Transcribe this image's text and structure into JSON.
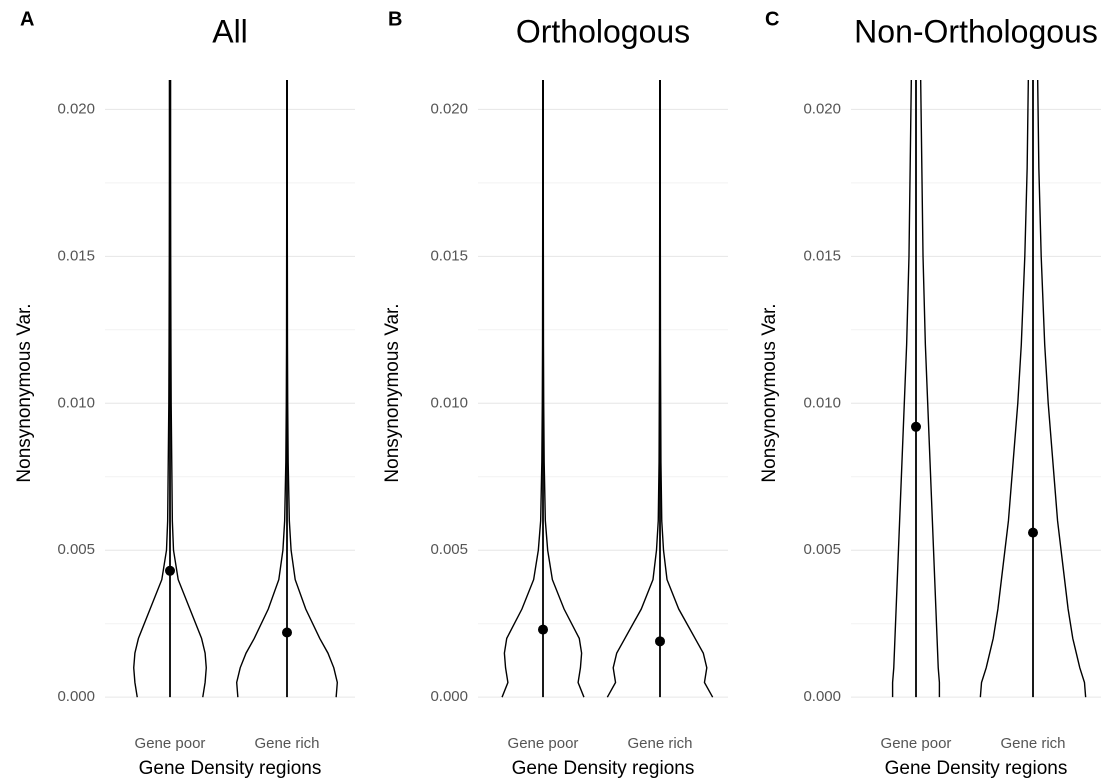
{
  "chart_data": [
    {
      "type": "violin",
      "panel": "A",
      "title": "All",
      "x_label": "Gene Density regions",
      "y_label": "Nonsynonymous Var.",
      "categories": [
        "Gene poor",
        "Gene rich"
      ],
      "color": "#000000",
      "grid": true,
      "ylim": [
        -0.0003,
        0.021
      ],
      "yticks": [
        {
          "value": 0,
          "label": "0.000"
        },
        0.005,
        {
          "value": 0.01,
          "label": "0.010"
        },
        0.015,
        {
          "value": 0.02,
          "label": "0.020"
        }
      ],
      "minor_yticks": [
        0.0025,
        0.0075,
        0.0125,
        0.0175
      ],
      "density_levels": [
        0,
        0.0005,
        0.001,
        0.0015,
        0.002,
        0.003,
        0.004,
        0.005,
        0.006,
        0.008,
        0.01,
        0.012,
        0.015,
        0.018,
        0.021
      ],
      "violins": [
        {
          "density": [
            0.28,
            0.3,
            0.31,
            0.3,
            0.27,
            0.17,
            0.07,
            0.03,
            0.02,
            0.015,
            0.01,
            0.008,
            0.006,
            0.005,
            0.005
          ],
          "mean": 0.0043,
          "whisker": [
            0,
            0.021
          ]
        },
        {
          "density": [
            0.42,
            0.43,
            0.4,
            0.35,
            0.28,
            0.16,
            0.07,
            0.035,
            0.02,
            0.01,
            0.006,
            0.004,
            0.003,
            0.002,
            0.002
          ],
          "mean": 0.0022,
          "whisker": [
            0,
            0.021
          ]
        }
      ]
    },
    {
      "type": "violin",
      "panel": "B",
      "title": "Orthologous",
      "x_label": "Gene Density regions",
      "y_label": "Nonsynonymous Var.",
      "categories": [
        "Gene poor",
        "Gene rich"
      ],
      "color": "#000000",
      "grid": true,
      "ylim": [
        -0.0003,
        0.021
      ],
      "yticks": [
        {
          "value": 0,
          "label": "0.000"
        },
        0.005,
        {
          "value": 0.01,
          "label": "0.010"
        },
        0.015,
        {
          "value": 0.02,
          "label": "0.020"
        }
      ],
      "minor_yticks": [
        0.0025,
        0.0075,
        0.0125,
        0.0175
      ],
      "density_levels": [
        0,
        0.0005,
        0.001,
        0.0015,
        0.002,
        0.003,
        0.004,
        0.005,
        0.006,
        0.008,
        0.01,
        0.012,
        0.015,
        0.018,
        0.021
      ],
      "violins": [
        {
          "density": [
            0.35,
            0.3,
            0.32,
            0.33,
            0.31,
            0.18,
            0.08,
            0.04,
            0.02,
            0.01,
            0.006,
            0.004,
            0.003,
            0.002,
            0.002
          ],
          "mean": 0.0023,
          "whisker": [
            0,
            0.021
          ]
        },
        {
          "density": [
            0.45,
            0.38,
            0.4,
            0.37,
            0.3,
            0.16,
            0.06,
            0.03,
            0.015,
            0.008,
            0.006,
            0.004,
            0.003,
            0.002,
            0.002
          ],
          "mean": 0.0019,
          "whisker": [
            0,
            0.021
          ]
        }
      ]
    },
    {
      "type": "violin",
      "panel": "C",
      "title": "Non-Orthologous",
      "x_label": "Gene Density regions",
      "y_label": "Nonsynonymous Var.",
      "categories": [
        "Gene poor",
        "Gene rich"
      ],
      "color": "#000000",
      "grid": true,
      "ylim": [
        -0.0003,
        0.021
      ],
      "yticks": [
        {
          "value": 0,
          "label": "0.000"
        },
        0.005,
        {
          "value": 0.01,
          "label": "0.010"
        },
        0.015,
        {
          "value": 0.02,
          "label": "0.020"
        }
      ],
      "minor_yticks": [
        0.0025,
        0.0075,
        0.0125,
        0.0175
      ],
      "density_levels": [
        0,
        0.0005,
        0.001,
        0.0015,
        0.002,
        0.003,
        0.004,
        0.005,
        0.006,
        0.008,
        0.01,
        0.012,
        0.015,
        0.018,
        0.021
      ],
      "violins": [
        {
          "density": [
            0.2,
            0.2,
            0.19,
            0.185,
            0.18,
            0.17,
            0.16,
            0.15,
            0.14,
            0.12,
            0.1,
            0.08,
            0.06,
            0.05,
            0.04
          ],
          "mean": 0.0092,
          "whisker": [
            0,
            0.021
          ]
        },
        {
          "density": [
            0.45,
            0.44,
            0.4,
            0.37,
            0.34,
            0.3,
            0.27,
            0.24,
            0.21,
            0.17,
            0.13,
            0.1,
            0.07,
            0.05,
            0.04
          ],
          "mean": 0.0056,
          "whisker": [
            0,
            0.021
          ]
        }
      ]
    }
  ]
}
